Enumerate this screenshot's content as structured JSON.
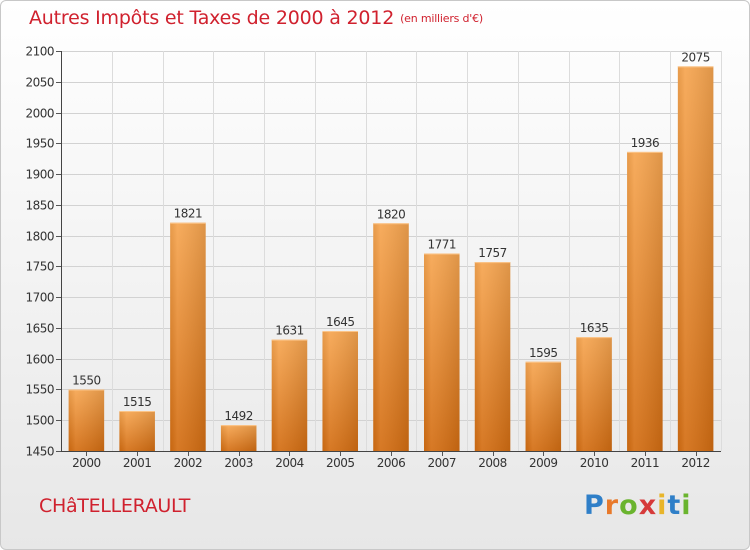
{
  "header": {
    "title": "Autres Impôts et Taxes de 2000 à 2012",
    "unit": "(en milliers d'€)"
  },
  "footer": {
    "city": "CHâTELLERAULT",
    "logo_letters": [
      "P",
      "r",
      "o",
      "x",
      "i",
      "t",
      "i"
    ],
    "logo_colors": [
      "#2f7fc8",
      "#e8792a",
      "#6ab42e",
      "#d63a3a",
      "#e8b52a",
      "#2f7fc8",
      "#6ab42e"
    ]
  },
  "chart_data": {
    "type": "bar",
    "title": "Autres Impôts et Taxes de 2000 à 2012",
    "unit": "(en milliers d'€)",
    "categories": [
      "2000",
      "2001",
      "2002",
      "2003",
      "2004",
      "2005",
      "2006",
      "2007",
      "2008",
      "2009",
      "2010",
      "2011",
      "2012"
    ],
    "values": [
      1550,
      1515,
      1821,
      1492,
      1631,
      1645,
      1820,
      1771,
      1757,
      1595,
      1635,
      1936,
      2075
    ],
    "ylim": [
      1450,
      2100
    ],
    "yticks": [
      1450,
      1500,
      1550,
      1600,
      1650,
      1700,
      1750,
      1800,
      1850,
      1900,
      1950,
      2000,
      2050,
      2100
    ],
    "grid": true,
    "bar_color_top": "#f6a550",
    "bar_color_bottom": "#d36d12"
  }
}
